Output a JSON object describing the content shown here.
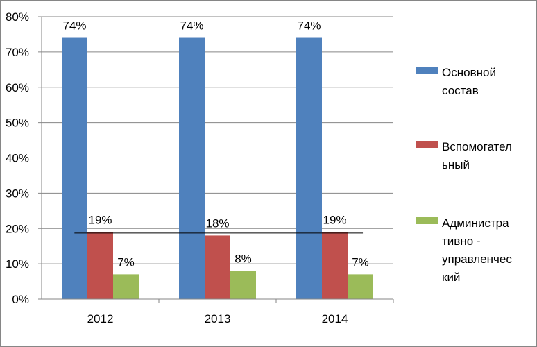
{
  "chart_data": {
    "type": "bar",
    "categories": [
      "2012",
      "2013",
      "2014"
    ],
    "series": [
      {
        "name": "Основной состав",
        "name_lines": [
          "Основной",
          "состав"
        ],
        "values": [
          74,
          74,
          74
        ],
        "labels": [
          "74%",
          "74%",
          "74%"
        ],
        "color": "#4F81BD"
      },
      {
        "name": "Вспомогательный",
        "name_lines": [
          "Вспомогател",
          "ьный"
        ],
        "values": [
          19,
          18,
          19
        ],
        "labels": [
          "19%",
          "18%",
          "19%"
        ],
        "color": "#C0504D"
      },
      {
        "name": "Административно - управленческий",
        "name_lines": [
          "Администра",
          "тивно -",
          "управленчес",
          "кий"
        ],
        "values": [
          7,
          8,
          7
        ],
        "labels": [
          "7%",
          "8%",
          "7%"
        ],
        "color": "#9BBB59"
      }
    ],
    "yticks": [
      "0%",
      "10%",
      "20%",
      "30%",
      "40%",
      "50%",
      "60%",
      "70%",
      "80%"
    ],
    "ylim": [
      0,
      80
    ],
    "grid": true,
    "legend": "right",
    "reference_line": {
      "value": 18.7,
      "color": "#000000"
    }
  }
}
